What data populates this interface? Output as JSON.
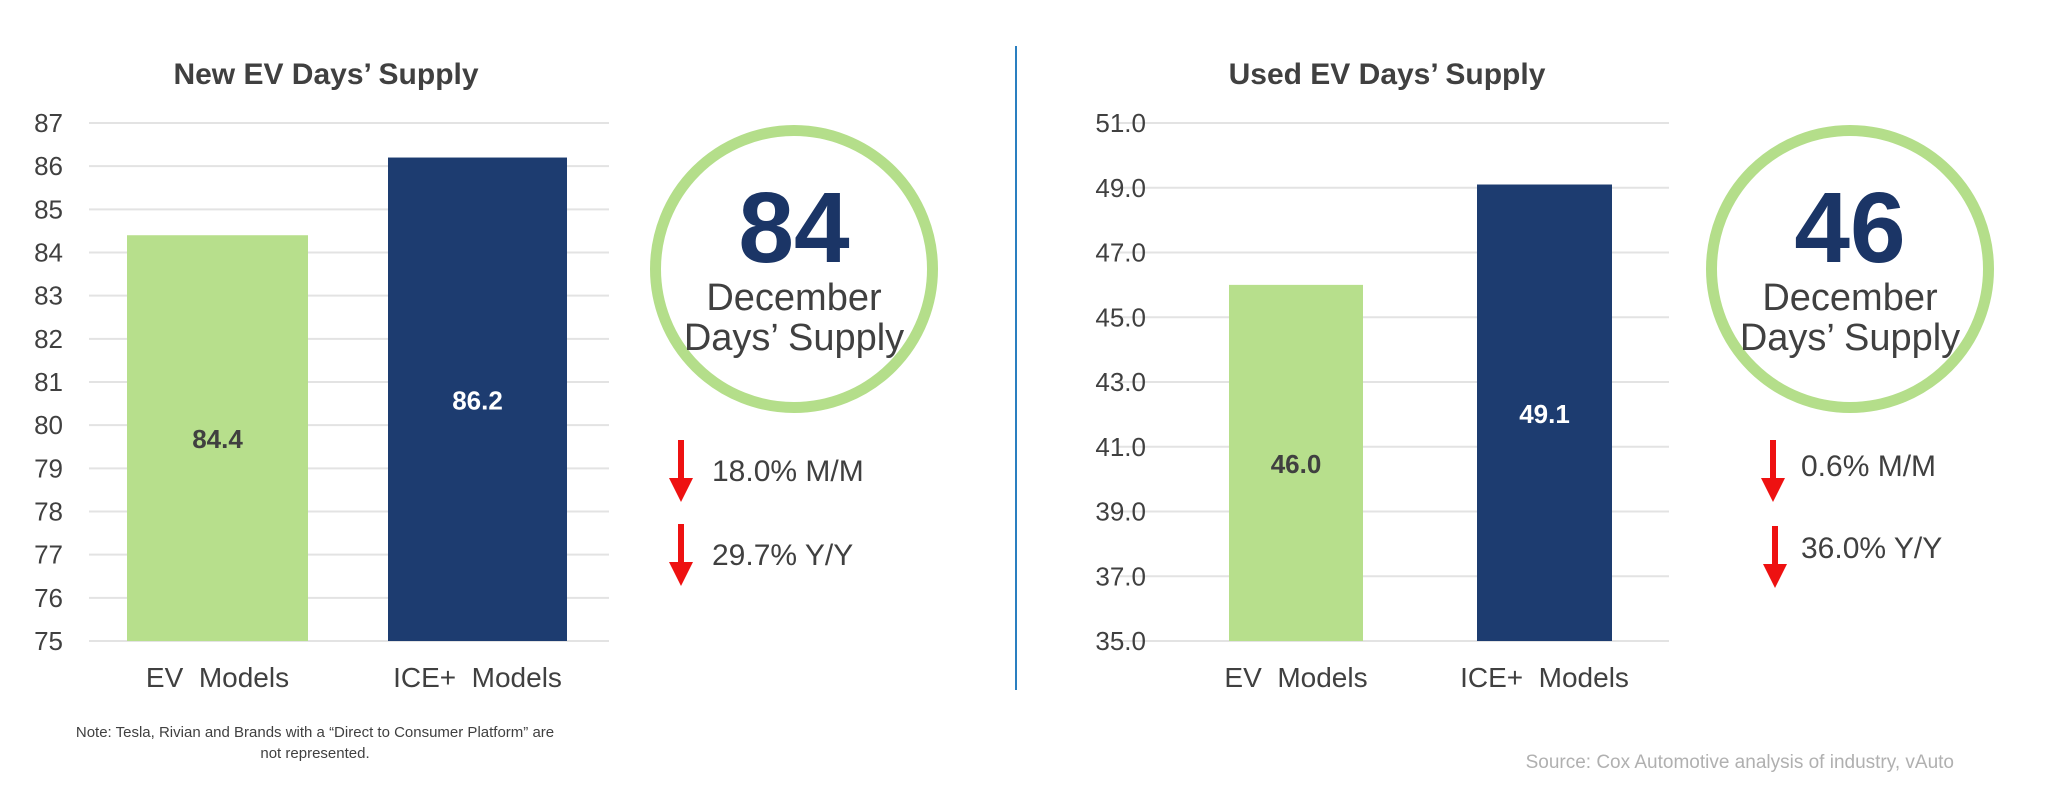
{
  "chart_data": [
    {
      "type": "bar",
      "title": "New EV Days’ Supply",
      "categories": [
        "EV  Models",
        "ICE+  Models"
      ],
      "values": [
        84.4,
        86.2
      ],
      "data_labels": [
        "84.4",
        "86.2"
      ],
      "colors": [
        "#b7df8c",
        "#1d3c70"
      ],
      "label_colors": [
        "#404040",
        "#ffffff"
      ],
      "ylim": [
        75,
        87
      ],
      "yticks": [
        "75",
        "76",
        "77",
        "78",
        "79",
        "80",
        "81",
        "82",
        "83",
        "84",
        "85",
        "86",
        "87"
      ],
      "grid": true,
      "xlabel": "",
      "ylabel": ""
    },
    {
      "type": "bar",
      "title": "Used EV Days’ Supply",
      "categories": [
        "EV  Models",
        "ICE+  Models"
      ],
      "values": [
        46.0,
        49.1
      ],
      "data_labels": [
        "46.0",
        "49.1"
      ],
      "colors": [
        "#b7df8c",
        "#1d3c70"
      ],
      "label_colors": [
        "#404040",
        "#ffffff"
      ],
      "ylim": [
        35,
        51
      ],
      "yticks": [
        "35.0",
        "37.0",
        "39.0",
        "41.0",
        "43.0",
        "45.0",
        "47.0",
        "49.0",
        "51.0"
      ],
      "grid": true,
      "xlabel": "",
      "ylabel": ""
    }
  ],
  "new": {
    "kpi": "84",
    "kpi_line1": "December",
    "kpi_line2": "Days’ Supply",
    "mm": "18.0% M/M",
    "yy": "29.7% Y/Y",
    "note": "Note: Tesla, Rivian and Brands with a “Direct to Consumer Platform” are not represented."
  },
  "used": {
    "kpi": "46",
    "kpi_line1": "December",
    "kpi_line2": "Days’ Supply",
    "mm": "0.6% M/M",
    "yy": "36.0% Y/Y"
  },
  "source": "Source: Cox Automotive analysis of industry, vAuto",
  "icons": {
    "trend": "arrow-down-icon",
    "arrow_color": "#ee1111"
  }
}
